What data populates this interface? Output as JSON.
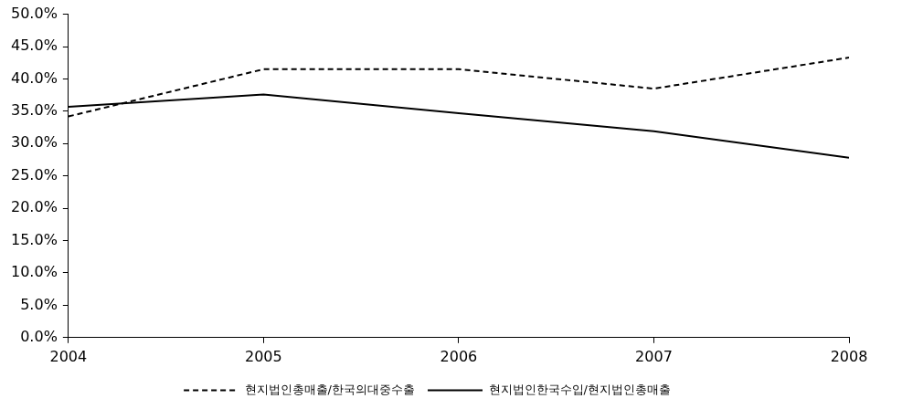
{
  "chart_data": {
    "type": "line",
    "categories": [
      "2004",
      "2005",
      "2006",
      "2007",
      "2008"
    ],
    "series": [
      {
        "name": "현지법인총매출/한국의대중수출",
        "color": "#000000",
        "line_style": "dashed",
        "marker": "none",
        "values": [
          34.2,
          41.5,
          41.5,
          38.5,
          43.3
        ]
      },
      {
        "name": "현지법인한국수입/현지법인총매출",
        "color": "#000000",
        "line_style": "solid",
        "marker": "none",
        "values": [
          35.7,
          37.6,
          34.7,
          31.9,
          27.8
        ]
      }
    ],
    "ylim": [
      0,
      50
    ],
    "yticks": [
      {
        "value": 0,
        "label": "0.0%"
      },
      {
        "value": 5,
        "label": "5.0%"
      },
      {
        "value": 10,
        "label": "10.0%"
      },
      {
        "value": 15,
        "label": "15.0%"
      },
      {
        "value": 20,
        "label": "20.0%"
      },
      {
        "value": 25,
        "label": "25.0%"
      },
      {
        "value": 30,
        "label": "30.0%"
      },
      {
        "value": 35,
        "label": "35.0%"
      },
      {
        "value": 40,
        "label": "40.0%"
      },
      {
        "value": 45,
        "label": "45.0%"
      },
      {
        "value": 50,
        "label": "50.0%"
      }
    ],
    "grid": false,
    "legend": "bottom"
  }
}
